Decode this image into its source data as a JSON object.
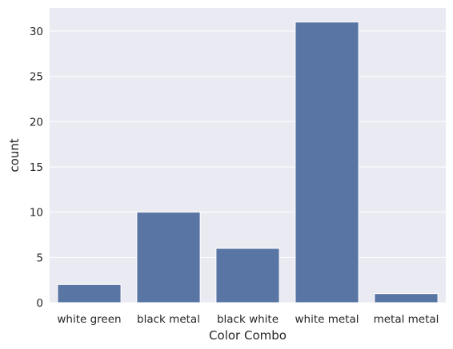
{
  "chart_data": {
    "type": "bar",
    "categories": [
      "white green",
      "black metal",
      "black white",
      "white metal",
      "metal metal"
    ],
    "values": [
      2,
      10,
      6,
      31,
      1
    ],
    "title": "",
    "xlabel": "Color Combo",
    "ylabel": "count",
    "ylim": [
      0,
      32.55
    ],
    "yticks": [
      0,
      5,
      10,
      15,
      20,
      25,
      30
    ],
    "grid": true,
    "legend": "none",
    "colors": {
      "bar": "#5975a4",
      "background": "#eaeaf2",
      "grid": "#ffffff",
      "text": "#262626"
    }
  }
}
